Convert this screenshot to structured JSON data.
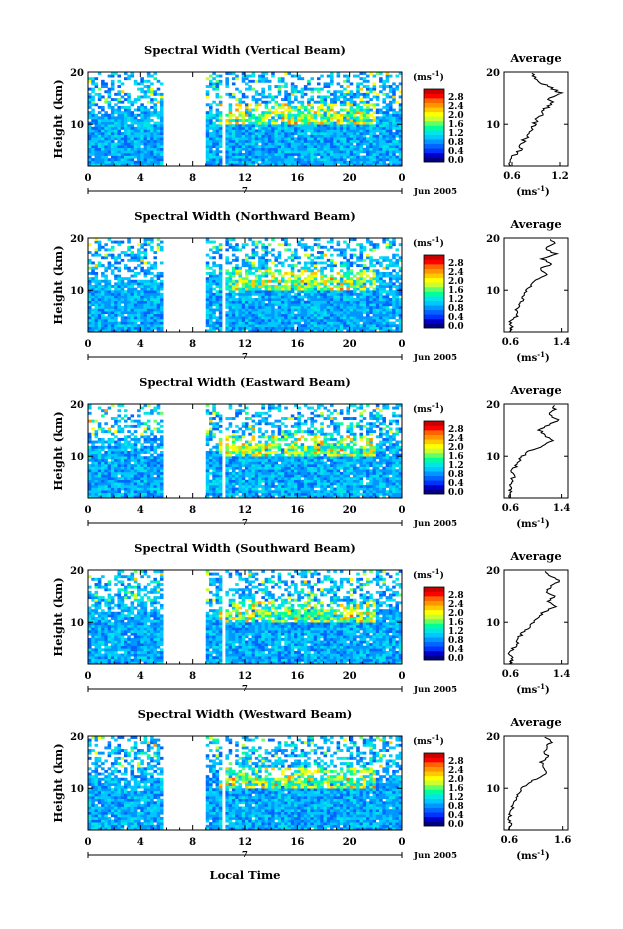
{
  "x_axis_label": "Local Time",
  "colorbar": {
    "unit": "(ms",
    "unit_exp": "-1",
    "unit_close": ")",
    "colors": [
      "#000080",
      "#0000c8",
      "#0032ff",
      "#0064ff",
      "#0096ff",
      "#00c8ff",
      "#00e6e6",
      "#00ff96",
      "#64ff64",
      "#c8ff32",
      "#ffff00",
      "#ffc800",
      "#ff9600",
      "#ff6400",
      "#ff0000",
      "#c80000"
    ]
  },
  "chart_data": [
    {
      "type": "heatmap",
      "title": "Spectral Width (Vertical Beam)",
      "ylabel": "Height (km)",
      "x_ticks": [
        "0",
        "4",
        "8",
        "12",
        "16",
        "20",
        "0"
      ],
      "date_marker": "7",
      "date_label": "Jun 2005",
      "xlim": [
        0,
        24
      ],
      "ylim": [
        2,
        20
      ],
      "y_ticks": [
        "20",
        "10"
      ],
      "colorbar_ticks": [
        "2.8",
        "2.4",
        "2.0",
        "1.6",
        "1.2",
        "0.8",
        "0.4",
        "0.0"
      ],
      "data_gaps_hours": [
        [
          5.7,
          9.0
        ],
        [
          10.3,
          10.6
        ]
      ],
      "profile": {
        "title": "Average",
        "xlabel": "(ms",
        "xlabel_exp": "-1",
        "xlabel_close": ")",
        "x_ticks": [
          "0.6",
          "1.2"
        ],
        "y_ticks": [
          "20",
          "10"
        ],
        "xlim": [
          0.5,
          1.3
        ],
        "height_km": [
          2,
          3,
          4,
          5,
          6,
          7,
          8,
          9,
          10,
          11,
          12,
          13,
          14,
          15,
          16,
          17,
          18,
          19,
          20
        ],
        "values": [
          0.58,
          0.6,
          0.62,
          0.7,
          0.72,
          0.75,
          0.82,
          0.85,
          0.88,
          0.92,
          0.98,
          1.02,
          1.1,
          1.05,
          1.2,
          1.08,
          0.95,
          0.88,
          0.86
        ]
      }
    },
    {
      "type": "heatmap",
      "title": "Spectral Width (Northward Beam)",
      "ylabel": "Height (km)",
      "x_ticks": [
        "0",
        "4",
        "8",
        "12",
        "16",
        "20",
        "0"
      ],
      "date_marker": "7",
      "date_label": "Jun 2005",
      "xlim": [
        0,
        24
      ],
      "ylim": [
        2,
        20
      ],
      "y_ticks": [
        "20",
        "10"
      ],
      "colorbar_ticks": [
        "2.8",
        "2.4",
        "2.0",
        "1.6",
        "1.2",
        "0.8",
        "0.4",
        "0.0"
      ],
      "data_gaps_hours": [
        [
          5.7,
          9.0
        ],
        [
          10.3,
          10.6
        ]
      ],
      "profile": {
        "title": "Average",
        "xlabel": "(ms",
        "xlabel_exp": "-1",
        "xlabel_close": ")",
        "x_ticks": [
          "0.6",
          "1.4"
        ],
        "y_ticks": [
          "20",
          "10"
        ],
        "xlim": [
          0.5,
          1.5
        ],
        "height_km": [
          2,
          3,
          4,
          5,
          6,
          7,
          8,
          9,
          10,
          11,
          12,
          13,
          14,
          15,
          16,
          17,
          18,
          19,
          20
        ],
        "values": [
          0.6,
          0.62,
          0.58,
          0.7,
          0.68,
          0.72,
          0.78,
          0.8,
          0.85,
          0.92,
          1.0,
          1.18,
          1.05,
          1.25,
          1.1,
          1.3,
          1.15,
          1.28,
          1.2
        ]
      }
    },
    {
      "type": "heatmap",
      "title": "Spectral Width (Eastward Beam)",
      "ylabel": "Height (km)",
      "x_ticks": [
        "0",
        "4",
        "8",
        "12",
        "16",
        "20",
        "0"
      ],
      "date_marker": "7",
      "date_label": "Jun 2005",
      "xlim": [
        0,
        24
      ],
      "ylim": [
        2,
        20
      ],
      "y_ticks": [
        "20",
        "10"
      ],
      "colorbar_ticks": [
        "2.8",
        "2.4",
        "2.0",
        "1.6",
        "1.2",
        "0.8",
        "0.4",
        "0.0"
      ],
      "data_gaps_hours": [
        [
          5.7,
          9.0
        ],
        [
          10.3,
          10.6
        ]
      ],
      "profile": {
        "title": "Average",
        "xlabel": "(ms",
        "xlabel_exp": "-1",
        "xlabel_close": ")",
        "x_ticks": [
          "0.6",
          "1.4"
        ],
        "y_ticks": [
          "20",
          "10"
        ],
        "xlim": [
          0.5,
          1.5
        ],
        "height_km": [
          2,
          3,
          4,
          5,
          6,
          7,
          8,
          9,
          10,
          11,
          12,
          13,
          14,
          15,
          16,
          17,
          18,
          19,
          20
        ],
        "values": [
          0.6,
          0.58,
          0.62,
          0.6,
          0.65,
          0.62,
          0.68,
          0.72,
          0.78,
          0.9,
          1.1,
          1.25,
          1.15,
          1.05,
          1.2,
          1.35,
          1.2,
          1.3,
          1.25
        ]
      }
    },
    {
      "type": "heatmap",
      "title": "Spectral Width (Southward Beam)",
      "ylabel": "Height (km)",
      "x_ticks": [
        "0",
        "4",
        "8",
        "12",
        "16",
        "20",
        "0"
      ],
      "date_marker": "7",
      "date_label": "Jun 2005",
      "xlim": [
        0,
        24
      ],
      "ylim": [
        2,
        20
      ],
      "y_ticks": [
        "20",
        "10"
      ],
      "colorbar_ticks": [
        "2.8",
        "2.4",
        "2.0",
        "1.6",
        "1.2",
        "0.8",
        "0.4",
        "0.0"
      ],
      "data_gaps_hours": [
        [
          5.7,
          9.0
        ],
        [
          10.3,
          10.6
        ]
      ],
      "profile": {
        "title": "Average",
        "xlabel": "(ms",
        "xlabel_exp": "-1",
        "xlabel_close": ")",
        "x_ticks": [
          "0.6",
          "1.4"
        ],
        "y_ticks": [
          "20",
          "10"
        ],
        "xlim": [
          0.5,
          1.5
        ],
        "height_km": [
          2,
          3,
          4,
          5,
          6,
          7,
          8,
          9,
          10,
          11,
          12,
          13,
          14,
          15,
          16,
          17,
          18,
          19,
          20
        ],
        "values": [
          0.6,
          0.62,
          0.58,
          0.65,
          0.7,
          0.72,
          0.8,
          0.88,
          0.95,
          1.05,
          1.12,
          1.3,
          1.2,
          1.28,
          1.15,
          1.25,
          1.38,
          1.22,
          1.1
        ]
      }
    },
    {
      "type": "heatmap",
      "title": "Spectral Width (Westward Beam)",
      "ylabel": "Height (km)",
      "x_ticks": [
        "0",
        "4",
        "8",
        "12",
        "16",
        "20",
        "0"
      ],
      "date_marker": "7",
      "date_label": "Jun 2005",
      "xlim": [
        0,
        24
      ],
      "ylim": [
        2,
        20
      ],
      "y_ticks": [
        "20",
        "10"
      ],
      "colorbar_ticks": [
        "2.8",
        "2.4",
        "2.0",
        "1.6",
        "1.2",
        "0.8",
        "0.4",
        "0.0"
      ],
      "data_gaps_hours": [
        [
          5.7,
          9.0
        ],
        [
          10.3,
          10.6
        ]
      ],
      "profile": {
        "title": "Average",
        "xlabel": "(ms",
        "xlabel_exp": "-1",
        "xlabel_close": ")",
        "x_ticks": [
          "0.6",
          "1.6"
        ],
        "y_ticks": [
          "20",
          "10"
        ],
        "xlim": [
          0.5,
          1.7
        ],
        "height_km": [
          2,
          3,
          4,
          5,
          6,
          7,
          8,
          9,
          10,
          11,
          12,
          13,
          14,
          15,
          16,
          17,
          18,
          19,
          20
        ],
        "values": [
          0.6,
          0.62,
          0.6,
          0.62,
          0.65,
          0.68,
          0.72,
          0.78,
          0.85,
          0.95,
          1.15,
          1.3,
          1.25,
          1.2,
          1.35,
          1.25,
          1.3,
          1.4,
          1.2
        ]
      }
    }
  ]
}
